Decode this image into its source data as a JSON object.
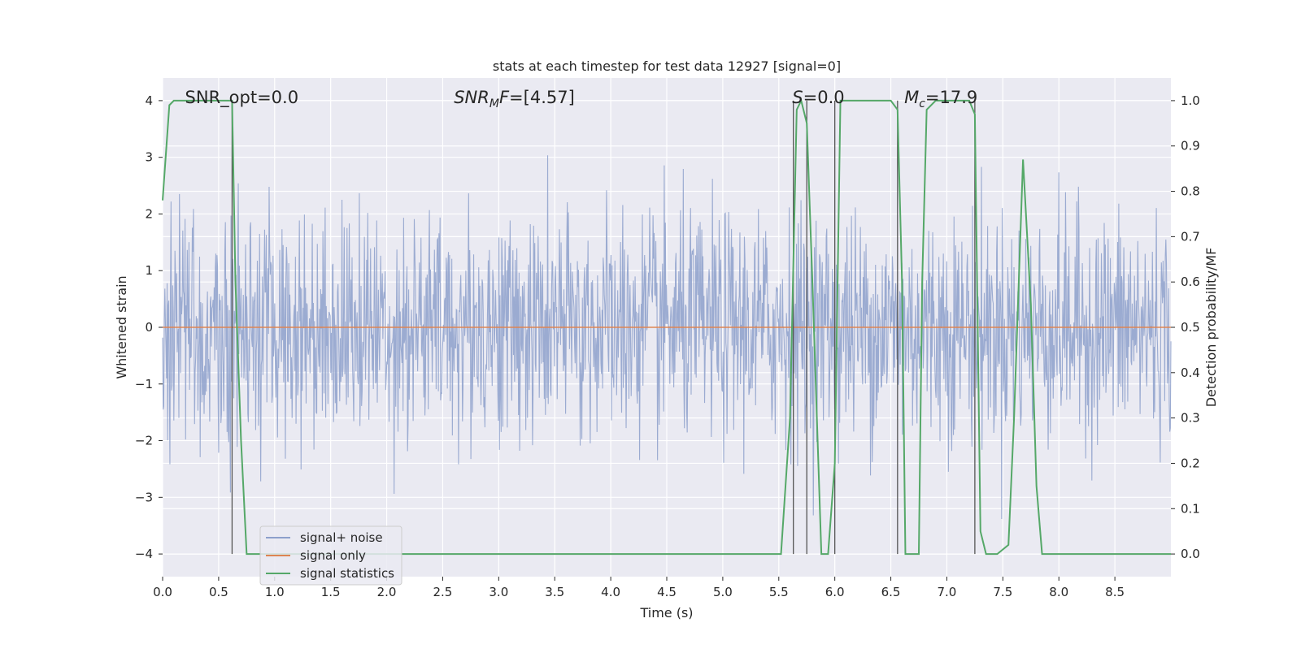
{
  "chart_data": {
    "type": "line",
    "title": "stats at each timestep for test data 12927 [signal=0]",
    "xlabel": "Time (s)",
    "ylabel": "Whitened strain",
    "ylabel_right": "Detection probability/MF",
    "xlim": [
      0.0,
      9.0
    ],
    "ylim": [
      -4.4,
      4.4
    ],
    "ylim_right": [
      -0.05,
      1.05
    ],
    "x_ticks": [
      "0.0",
      "0.5",
      "1.0",
      "1.5",
      "2.0",
      "2.5",
      "3.0",
      "3.5",
      "4.0",
      "4.5",
      "5.0",
      "5.5",
      "6.0",
      "6.5",
      "7.0",
      "7.5",
      "8.0",
      "8.5"
    ],
    "y_ticks": [
      "−4",
      "−3",
      "−2",
      "−1",
      "0",
      "1",
      "2",
      "3",
      "4"
    ],
    "y_ticks_right": [
      "0.0",
      "0.1",
      "0.2",
      "0.3",
      "0.4",
      "0.5",
      "0.6",
      "0.7",
      "0.8",
      "0.9",
      "1.0"
    ],
    "grid": true,
    "legend_position": "lower-left",
    "annotations": [
      {
        "text_parts": [
          {
            "t": "SNR_opt=0.0",
            "italic": false
          }
        ],
        "x": 0.2,
        "y": 4.1
      },
      {
        "text_parts": [
          {
            "t": "SNR",
            "italic": true
          },
          {
            "t": "M",
            "italic": true,
            "sub": true
          },
          {
            "t": "F",
            "italic": true
          },
          {
            "t": "=[4.57]",
            "italic": false
          }
        ],
        "x": 2.6,
        "y": 4.1
      },
      {
        "text_parts": [
          {
            "t": "S",
            "italic": true
          },
          {
            "t": "=0.0",
            "italic": false
          }
        ],
        "x": 5.62,
        "y": 4.1
      },
      {
        "text_parts": [
          {
            "t": "M",
            "italic": true
          },
          {
            "t": "c",
            "italic": true,
            "sub": true
          },
          {
            "t": "=17.9",
            "italic": false
          }
        ],
        "x": 6.62,
        "y": 4.1
      }
    ],
    "vlines": [
      {
        "x": 0.62,
        "y0": 0.0,
        "y1": 1.0
      },
      {
        "x": 5.63,
        "y0": 0.0,
        "y1": 1.0
      },
      {
        "x": 5.75,
        "y0": 0.0,
        "y1": 1.0
      },
      {
        "x": 6.0,
        "y0": 0.0,
        "y1": 1.0
      },
      {
        "x": 6.56,
        "y0": 0.0,
        "y1": 1.0
      },
      {
        "x": 7.25,
        "y0": 0.0,
        "y1": 1.0
      }
    ],
    "series": [
      {
        "name": "signal+ noise",
        "axis": "left",
        "color": "#8da0cb",
        "description": "dense whitened noise, approx. ±2.5 with peaks to ±3.5",
        "n_points": 1800,
        "amplitude_std": 1.0,
        "peak_range": [
          -3.6,
          3.6
        ]
      },
      {
        "name": "signal only",
        "axis": "left",
        "color": "#dd8452",
        "x": [
          0.0,
          9.0
        ],
        "y": [
          0.0,
          0.0
        ]
      },
      {
        "name": "signal statistics",
        "axis": "right",
        "color": "#55a868",
        "x": [
          0.0,
          0.06,
          0.1,
          0.55,
          0.62,
          0.65,
          0.7,
          0.75,
          5.52,
          5.6,
          5.66,
          5.7,
          5.75,
          5.8,
          5.88,
          5.94,
          6.0,
          6.05,
          6.5,
          6.56,
          6.6,
          6.63,
          6.7,
          6.75,
          6.78,
          6.82,
          6.9,
          7.2,
          7.25,
          7.3,
          7.35,
          7.45,
          7.55,
          7.6,
          7.68,
          7.75,
          7.8,
          7.85,
          9.0
        ],
        "y": [
          0.78,
          0.99,
          1.0,
          1.0,
          1.0,
          0.6,
          0.25,
          0.0,
          0.0,
          0.3,
          0.98,
          1.0,
          0.95,
          0.6,
          0.0,
          0.0,
          0.2,
          1.0,
          1.0,
          0.98,
          0.6,
          0.0,
          0.0,
          0.0,
          0.6,
          0.98,
          1.0,
          1.0,
          0.97,
          0.05,
          0.0,
          0.0,
          0.02,
          0.3,
          0.87,
          0.55,
          0.15,
          0.0,
          0.0
        ]
      }
    ]
  }
}
